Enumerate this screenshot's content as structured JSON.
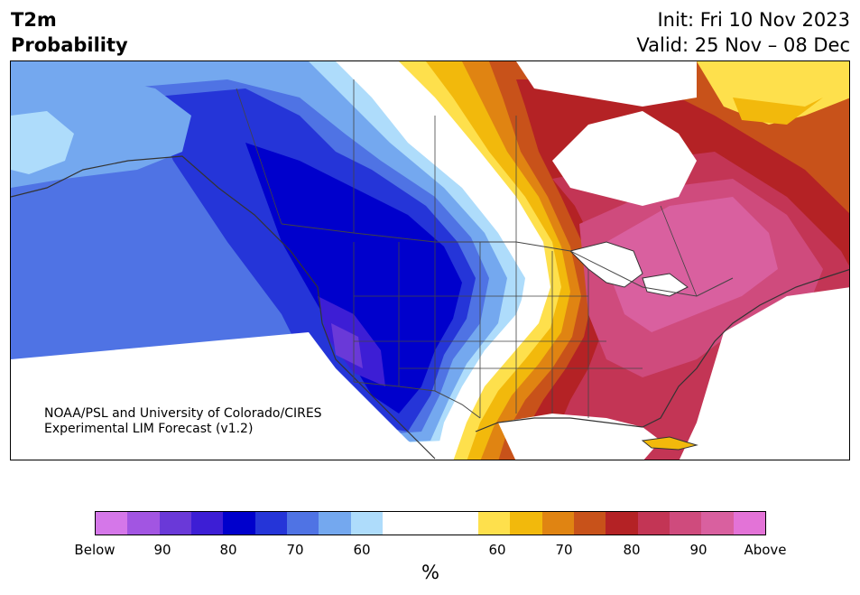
{
  "title": {
    "line1": "T2m",
    "line2": "Probability"
  },
  "init_line": "Init: Fri 10 Nov 2023",
  "valid_line": "Valid: 25 Nov – 08 Dec",
  "credit": {
    "line1": "NOAA/PSL and University of Colorado/CIRES",
    "line2": "Experimental LIM Forecast (v1.2)"
  },
  "colorbar": {
    "unit": "%",
    "tick_labels": [
      "Below",
      "90",
      "80",
      "70",
      "60",
      "60",
      "70",
      "80",
      "90",
      "Above"
    ],
    "below_colors": [
      "#d577e9",
      "#a255e2",
      "#6a39d8",
      "#3d1ed5",
      "#0000cc",
      "#2535d8",
      "#4f73e4",
      "#74a8ef",
      "#aedcfb"
    ],
    "neutral_color": "#ffffff",
    "above_colors": [
      "#fee04c",
      "#f2b90c",
      "#e08412",
      "#c8521a",
      "#b42225",
      "#c33555",
      "#cf4b7d",
      "#d9609f",
      "#e373d7"
    ]
  },
  "map_colors": {
    "land_neutral": "#ffffff",
    "coastline": "#333333",
    "border": "#444444"
  }
}
